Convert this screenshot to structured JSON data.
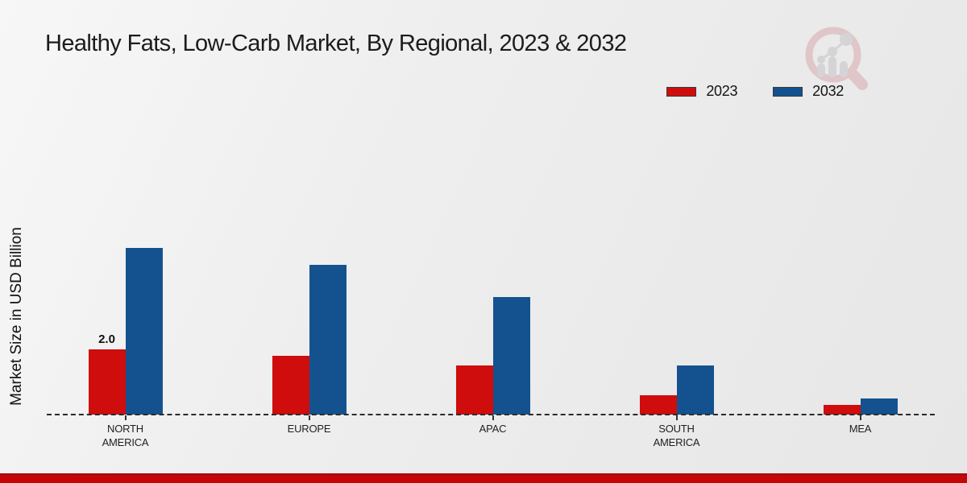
{
  "chart_data": {
    "type": "bar",
    "title": "Healthy Fats, Low-Carb Market, By Regional, 2023 & 2032",
    "ylabel": "Market Size in USD Billion",
    "xlabel": "",
    "categories": [
      "NORTH AMERICA",
      "EUROPE",
      "APAC",
      "SOUTH AMERICA",
      "MEA"
    ],
    "categories_display": [
      "NORTH\nAMERICA",
      "EUROPE",
      "APAC",
      "SOUTH\nAMERICA",
      "MEA"
    ],
    "series": [
      {
        "name": "2023",
        "color": "#cf0d0d",
        "values": [
          2.0,
          1.8,
          1.5,
          0.6,
          0.3
        ],
        "labels": [
          "2.0",
          "",
          "",
          "",
          ""
        ]
      },
      {
        "name": "2032",
        "color": "#14528f",
        "values": [
          5.1,
          4.6,
          3.6,
          1.5,
          0.5
        ],
        "labels": [
          "",
          "",
          "",
          "",
          ""
        ]
      }
    ],
    "ylim": [
      0,
      5.5
    ],
    "grid": false,
    "y_axis_visible": false,
    "x_axis_style": "dashed-baseline",
    "legend_position": "top-right",
    "value_unit": "USD Billion"
  },
  "colors": {
    "series_2023": "#cf0d0d",
    "series_2032": "#14528f",
    "footer_stripe": "#c40606",
    "baseline": "#2b2b2b"
  },
  "watermark": {
    "name": "magnifier-bar-chart-logo",
    "glass_color": "#d9a9ad",
    "bars_color": "#c3c3c7"
  }
}
